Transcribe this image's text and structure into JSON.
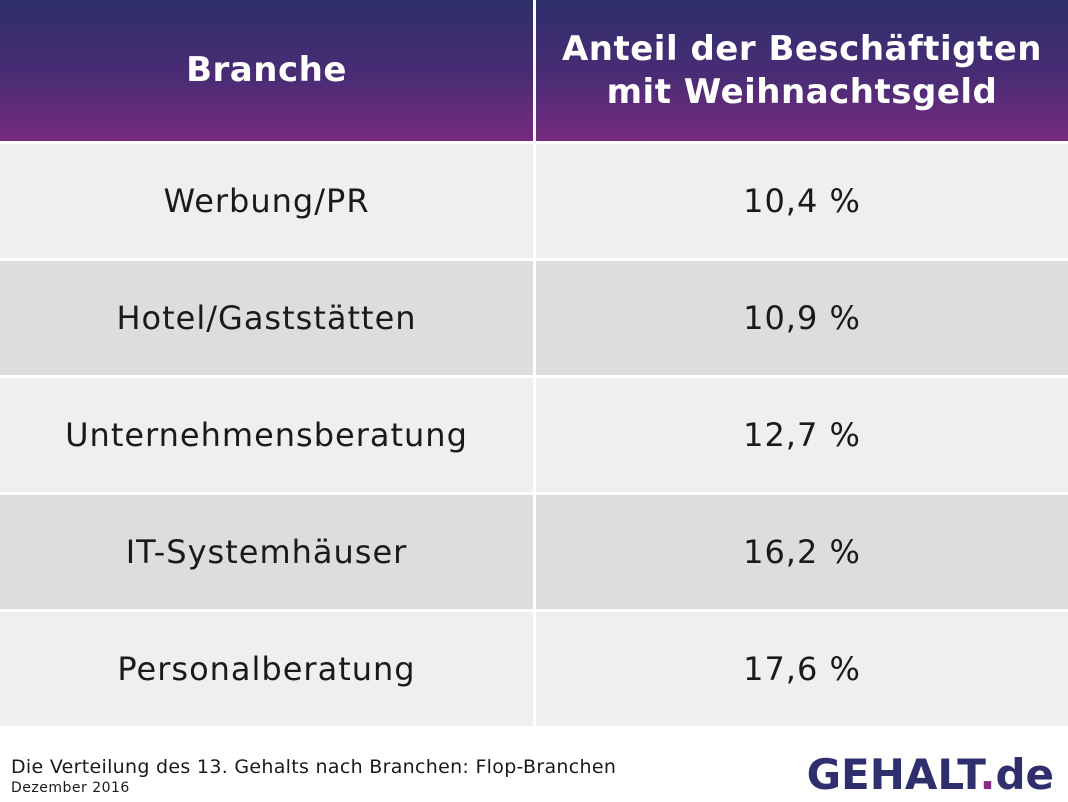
{
  "chart_data": {
    "type": "table",
    "columns": [
      "Branche",
      "Anteil der Beschäftigten mit Weihnachtsgeld"
    ],
    "header": {
      "col1": "Branche",
      "col2_line1": "Anteil der Beschäftigten",
      "col2_line2": "mit Weihnachtsgeld"
    },
    "rows": [
      {
        "branche": "Werbung/PR",
        "anteil": "10,4 %"
      },
      {
        "branche": "Hotel/Gaststätten",
        "anteil": "10,9 %"
      },
      {
        "branche": "Unternehmensberatung",
        "anteil": "12,7 %"
      },
      {
        "branche": "IT-Systemhäuser",
        "anteil": "16,2 %"
      },
      {
        "branche": "Personalberatung",
        "anteil": "17,6 %"
      }
    ]
  },
  "footer": {
    "caption": "Die Verteilung des 13. Gehalts nach Branchen: Flop-Branchen",
    "date": "Dezember 2016"
  },
  "logo": {
    "name": "GEHALT",
    "dot": ".",
    "tld": "de"
  },
  "colors": {
    "header_top": "#2e2f6c",
    "header_bottom": "#772a80",
    "row_light": "#efefef",
    "row_dark": "#dddddd",
    "logo_text": "#2e2f6c",
    "logo_dot": "#8a2a85"
  }
}
